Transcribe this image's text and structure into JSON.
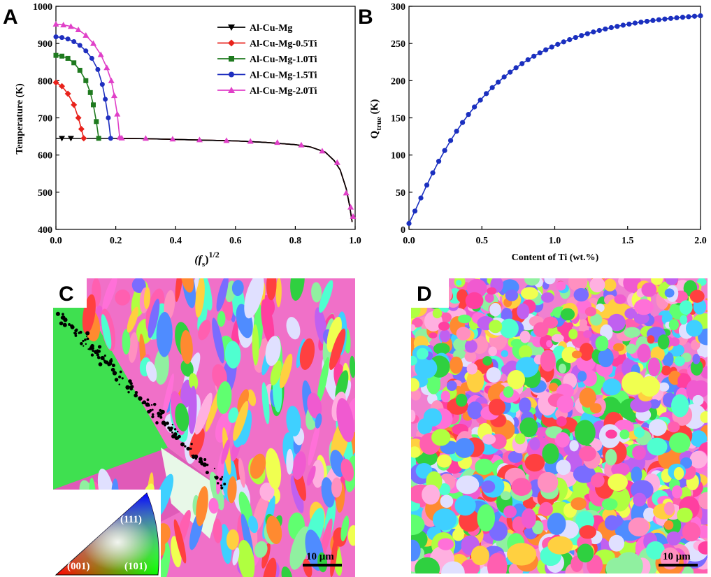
{
  "panels": {
    "a_letter": "A",
    "b_letter": "B",
    "c_letter": "C",
    "d_letter": "D"
  },
  "ipf": {
    "label_111": "(111)",
    "label_001": "(001)",
    "label_101": "(101)"
  },
  "scale_bars": {
    "c": "10 μm",
    "d": "10 μm"
  },
  "chart_data": [
    {
      "panel": "A",
      "type": "line",
      "xlabel_base": "(f",
      "xlabel_sub": "s",
      "xlabel_tail": ")",
      "xlabel_sup": "1/2",
      "ylabel": "Temperature (K)",
      "xlim": [
        0.0,
        1.0
      ],
      "ylim": [
        400,
        1000
      ],
      "xticks": [
        "0.0",
        "0.2",
        "0.4",
        "0.6",
        "0.8",
        "1.0"
      ],
      "yticks": [
        "400",
        "500",
        "600",
        "700",
        "800",
        "900",
        "1000"
      ],
      "legend_position": "top-right",
      "series": [
        {
          "name": "Al-Cu-Mg",
          "color": "#000000",
          "marker": "triangle-down",
          "x": [
            0.0,
            0.05,
            0.1,
            0.2,
            0.3,
            0.4,
            0.5,
            0.6,
            0.7,
            0.8,
            0.85,
            0.9,
            0.93,
            0.95,
            0.97,
            0.98,
            0.99
          ],
          "y": [
            645,
            645,
            645,
            645,
            644,
            642,
            640,
            638,
            634,
            628,
            622,
            608,
            585,
            560,
            510,
            470,
            420
          ]
        },
        {
          "name": "Al-Cu-Mg-0.5Ti",
          "color": "#e8221b",
          "marker": "diamond",
          "x": [
            0.0,
            0.02,
            0.04,
            0.06,
            0.075,
            0.085,
            0.093
          ],
          "y": [
            795,
            785,
            765,
            735,
            700,
            670,
            645
          ]
        },
        {
          "name": "Al-Cu-Mg-1.0Ti",
          "color": "#1f7a1f",
          "marker": "square",
          "x": [
            0.0,
            0.02,
            0.04,
            0.06,
            0.08,
            0.1,
            0.115,
            0.125,
            0.135,
            0.143
          ],
          "y": [
            868,
            866,
            860,
            848,
            828,
            800,
            768,
            735,
            690,
            645
          ]
        },
        {
          "name": "Al-Cu-Mg-1.5Ti",
          "color": "#1f2fbf",
          "marker": "circle",
          "x": [
            0.0,
            0.02,
            0.04,
            0.06,
            0.08,
            0.1,
            0.12,
            0.14,
            0.155,
            0.165,
            0.175,
            0.183
          ],
          "y": [
            918,
            916,
            912,
            905,
            895,
            880,
            860,
            830,
            790,
            750,
            700,
            645
          ]
        },
        {
          "name": "Al-Cu-Mg-2.0Ti",
          "color": "#e040c8",
          "marker": "triangle-up",
          "x": [
            0.0,
            0.025,
            0.05,
            0.075,
            0.1,
            0.125,
            0.15,
            0.17,
            0.185,
            0.195,
            0.205,
            0.213
          ],
          "y": [
            952,
            950,
            946,
            937,
            922,
            900,
            870,
            835,
            800,
            760,
            710,
            648
          ]
        }
      ],
      "shared_tail": {
        "x": [
          0.22,
          0.3,
          0.39,
          0.48,
          0.57,
          0.65,
          0.74,
          0.82,
          0.89,
          0.94,
          0.97,
          0.985,
          0.993
        ],
        "y": [
          646,
          645,
          643,
          641,
          639,
          637,
          634,
          627,
          611,
          580,
          498,
          460,
          435
        ]
      }
    },
    {
      "panel": "B",
      "type": "scatter",
      "xlabel": "Content of Ti (wt.%)",
      "ylabel_base": "Q",
      "ylabel_sub": "true",
      "ylabel_tail": " (K)",
      "xlim": [
        0.0,
        2.0
      ],
      "ylim": [
        0,
        300
      ],
      "xticks": [
        "0.0",
        "0.5",
        "1.0",
        "1.5",
        "2.0"
      ],
      "yticks": [
        "0",
        "50",
        "100",
        "150",
        "200",
        "250",
        "300"
      ],
      "series": [
        {
          "color": "#1a2fbf",
          "marker": "circle",
          "fit": "Qmax*(1-exp(-x/x0))",
          "Qmax": 295,
          "x0": 0.55,
          "x_start": 0.0,
          "x_end": 2.0,
          "n_points": 50
        }
      ]
    }
  ]
}
